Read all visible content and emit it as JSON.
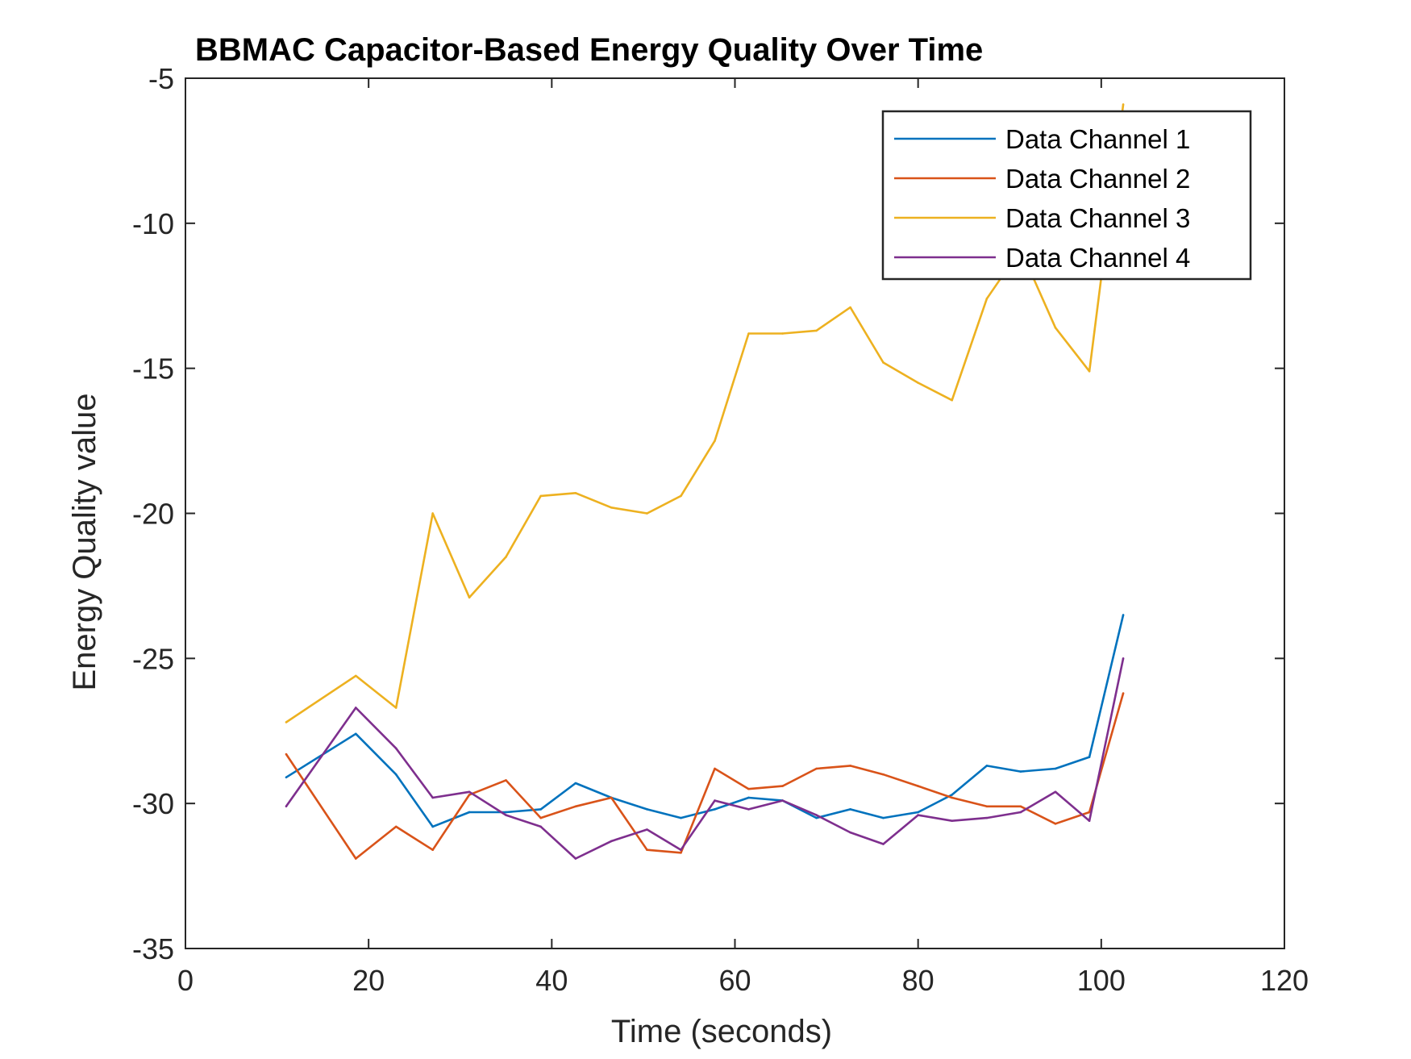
{
  "chart_data": {
    "type": "line",
    "title": "BBMAC Capacitor-Based Energy Quality Over Time",
    "xlabel": "Time (seconds)",
    "ylabel": "Energy Quality value",
    "xlim": [
      0,
      120
    ],
    "ylim": [
      -35,
      -5
    ],
    "xticks": [
      0,
      20,
      40,
      60,
      80,
      100,
      120
    ],
    "yticks": [
      -35,
      -30,
      -25,
      -20,
      -15,
      -10,
      -5
    ],
    "xtick_labels": [
      "0",
      "20",
      "40",
      "60",
      "80",
      "100",
      "120"
    ],
    "ytick_labels": [
      "-35",
      "-30",
      "-25",
      "-20",
      "-15",
      "-10",
      "-5"
    ],
    "grid": false,
    "legend_position": "top-right",
    "x": [
      11,
      18.6,
      23,
      27,
      31,
      35,
      38.8,
      42.6,
      46.5,
      50.4,
      54.1,
      57.8,
      61.5,
      65.2,
      68.9,
      72.6,
      76.2,
      80,
      83.7,
      87.5,
      91.2,
      95,
      98.7,
      102.4
    ],
    "series": [
      {
        "name": "Data Channel 1",
        "color": "#0072BD",
        "values": [
          -29.1,
          -27.6,
          -29,
          -30.8,
          -30.3,
          -30.3,
          -30.2,
          -29.3,
          -29.8,
          -30.2,
          -30.5,
          -30.2,
          -29.8,
          -29.9,
          -30.5,
          -30.2,
          -30.5,
          -30.3,
          -29.7,
          -28.7,
          -28.9,
          -28.8,
          -28.4,
          -23.5
        ]
      },
      {
        "name": "Data Channel 2",
        "color": "#D95319",
        "values": [
          -28.3,
          -31.9,
          -30.8,
          -31.6,
          -29.7,
          -29.2,
          -30.5,
          -30.1,
          -29.8,
          -31.6,
          -31.7,
          -28.8,
          -29.5,
          -29.4,
          -28.8,
          -28.7,
          -29,
          -29.4,
          -29.8,
          -30.1,
          -30.1,
          -30.7,
          -30.3,
          -26.2
        ]
      },
      {
        "name": "Data Channel 3",
        "color": "#EDB120",
        "values": [
          -27.2,
          -25.6,
          -26.7,
          -20,
          -22.9,
          -21.5,
          -19.4,
          -19.3,
          -19.8,
          -20,
          -19.4,
          -17.5,
          -13.8,
          -13.8,
          -13.7,
          -12.9,
          -14.8,
          -15.5,
          -16.1,
          -12.6,
          -10.9,
          -13.6,
          -15.1,
          -5.9
        ]
      },
      {
        "name": "Data Channel 4",
        "color": "#7E2F8E",
        "values": [
          -30.1,
          -26.7,
          -28.1,
          -29.8,
          -29.6,
          -30.4,
          -30.8,
          -31.9,
          -31.3,
          -30.9,
          -31.6,
          -29.9,
          -30.2,
          -29.9,
          -30.4,
          -31,
          -31.4,
          -30.4,
          -30.6,
          -30.5,
          -30.3,
          -29.6,
          -30.6,
          -25
        ]
      }
    ]
  }
}
